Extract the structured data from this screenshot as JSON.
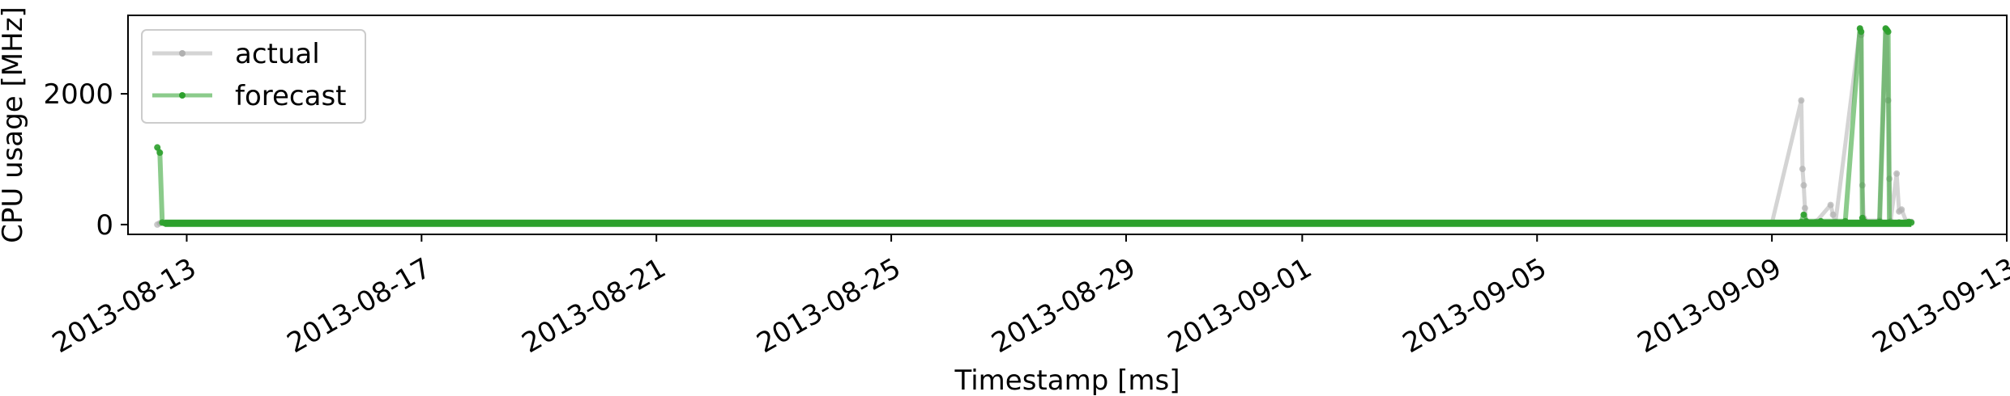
{
  "chart_data": {
    "type": "line",
    "xlabel": "Timestamp [ms]",
    "ylabel": "CPU usage [MHz]",
    "xlim": [
      "2013-08-12",
      "2013-09-13"
    ],
    "ylim": [
      -150,
      3200
    ],
    "x_ticks": [
      "2013-08-13",
      "2013-08-17",
      "2013-08-21",
      "2013-08-25",
      "2013-08-29",
      "2013-09-01",
      "2013-09-05",
      "2013-09-09",
      "2013-09-13"
    ],
    "y_ticks": [
      0,
      2000
    ],
    "grid": false,
    "legend": "top-left",
    "series": [
      {
        "name": "actual",
        "color": "#b0b0b0",
        "x": [
          "2013-08-12T12:00",
          "2013-08-12T13:00",
          "2013-08-14T00:00",
          "2013-08-17T00:00",
          "2013-08-21T00:00",
          "2013-08-25T00:00",
          "2013-08-29T00:00",
          "2013-09-01T00:00",
          "2013-09-05T00:00",
          "2013-09-09T00:00",
          "2013-09-09T12:00",
          "2013-09-09T12:30",
          "2013-09-09T13:00",
          "2013-09-09T13:30",
          "2013-09-09T14:00",
          "2013-09-09T18:00",
          "2013-09-10T00:00",
          "2013-09-10T01:00",
          "2013-09-10T02:00",
          "2013-09-10T12:00",
          "2013-09-10T12:30",
          "2013-09-10T13:00",
          "2013-09-10T13:30",
          "2013-09-10T14:00",
          "2013-09-10T20:00",
          "2013-09-10T22:30",
          "2013-09-10T23:00",
          "2013-09-10T23:30",
          "2013-09-11T00:00",
          "2013-09-11T00:30",
          "2013-09-11T03:00",
          "2013-09-11T04:00",
          "2013-09-11T05:00",
          "2013-09-11T07:00",
          "2013-09-11T09:00"
        ],
        "values": [
          0,
          20,
          20,
          20,
          20,
          20,
          20,
          20,
          20,
          20,
          1900,
          850,
          600,
          250,
          40,
          40,
          300,
          150,
          40,
          3000,
          2900,
          600,
          100,
          60,
          60,
          3000,
          2950,
          1900,
          700,
          50,
          780,
          200,
          230,
          40,
          40
        ]
      },
      {
        "name": "forecast",
        "color": "#2ca02c",
        "x": [
          "2013-08-12T12:00",
          "2013-08-12T13:00",
          "2013-08-12T14:00",
          "2013-08-12T15:00",
          "2013-08-14T00:00",
          "2013-08-17T00:00",
          "2013-08-21T00:00",
          "2013-08-25T00:00",
          "2013-08-29T00:00",
          "2013-09-01T00:00",
          "2013-09-05T00:00",
          "2013-09-09T00:00",
          "2013-09-09T12:00",
          "2013-09-09T13:00",
          "2013-09-09T14:00",
          "2013-09-09T20:00",
          "2013-09-10T06:00",
          "2013-09-10T12:00",
          "2013-09-10T12:30",
          "2013-09-10T13:00",
          "2013-09-10T13:30",
          "2013-09-10T14:00",
          "2013-09-10T20:00",
          "2013-09-10T22:30",
          "2013-09-10T23:00",
          "2013-09-10T23:30",
          "2013-09-11T00:00",
          "2013-09-11T04:00",
          "2013-09-11T08:00",
          "2013-09-11T09:00"
        ],
        "values": [
          1180,
          1100,
          30,
          20,
          20,
          20,
          20,
          20,
          20,
          20,
          20,
          20,
          40,
          150,
          50,
          50,
          50,
          3000,
          2950,
          100,
          50,
          40,
          40,
          3000,
          2980,
          2950,
          30,
          30,
          40,
          30
        ]
      }
    ]
  }
}
